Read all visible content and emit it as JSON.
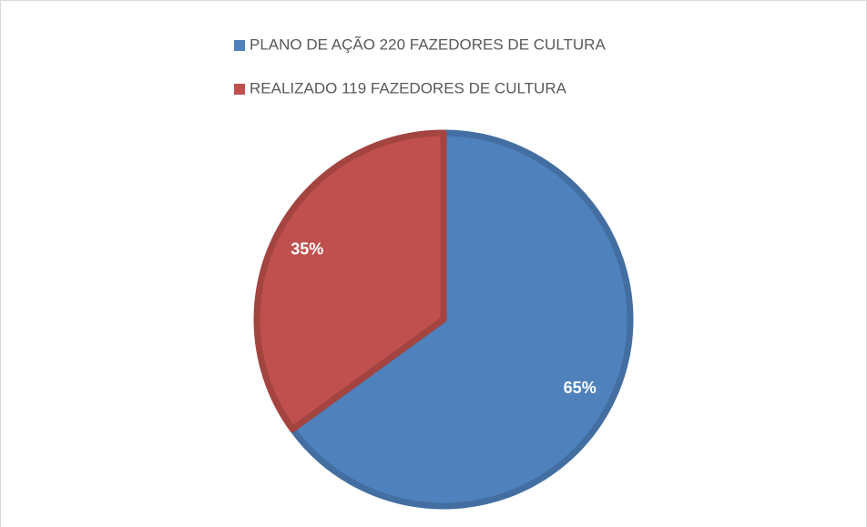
{
  "chart_data": {
    "type": "pie",
    "categories": [
      "PLANO DE AÇÃO 220 FAZEDORES DE CULTURA",
      "REALIZADO 119 FAZEDORES DE CULTURA"
    ],
    "values": [
      65,
      35
    ],
    "value_labels": [
      "65%",
      "35%"
    ],
    "colors": [
      "#4f81bd",
      "#c0504d"
    ]
  }
}
